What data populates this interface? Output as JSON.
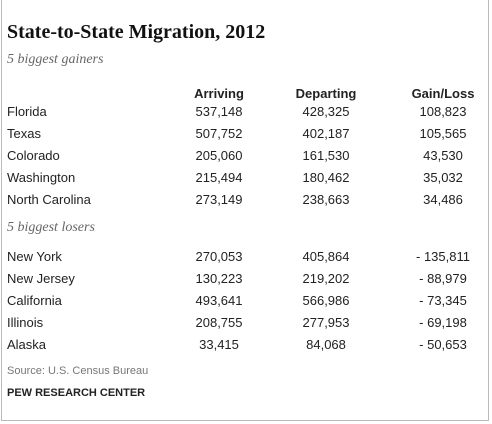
{
  "title": "State-to-State Migration, 2012",
  "table": {
    "columns": [
      "Arriving",
      "Departing",
      "Gain/Loss"
    ],
    "sections": [
      {
        "label": "5 biggest gainers",
        "rows": [
          [
            "Florida",
            "537,148",
            "428,325",
            "108,823"
          ],
          [
            "Texas",
            "507,752",
            "402,187",
            "105,565"
          ],
          [
            "Colorado",
            "205,060",
            "161,530",
            "43,530"
          ],
          [
            "Washington",
            "215,494",
            "180,462",
            "35,032"
          ],
          [
            "North Carolina",
            "273,149",
            "238,663",
            "34,486"
          ]
        ]
      },
      {
        "label": "5 biggest losers",
        "rows": [
          [
            "New York",
            "270,053",
            "405,864",
            "- 135,811"
          ],
          [
            "New Jersey",
            "130,223",
            "219,202",
            "- 88,979"
          ],
          [
            "California",
            "493,641",
            "566,986",
            "- 73,345"
          ],
          [
            "Illinois",
            "208,755",
            "277,953",
            "- 69,198"
          ],
          [
            "Alaska",
            "33,415",
            "84,068",
            "- 50,653"
          ]
        ]
      }
    ]
  },
  "source": "Source: U.S. Census Bureau",
  "footer": "PEW RESEARCH CENTER"
}
